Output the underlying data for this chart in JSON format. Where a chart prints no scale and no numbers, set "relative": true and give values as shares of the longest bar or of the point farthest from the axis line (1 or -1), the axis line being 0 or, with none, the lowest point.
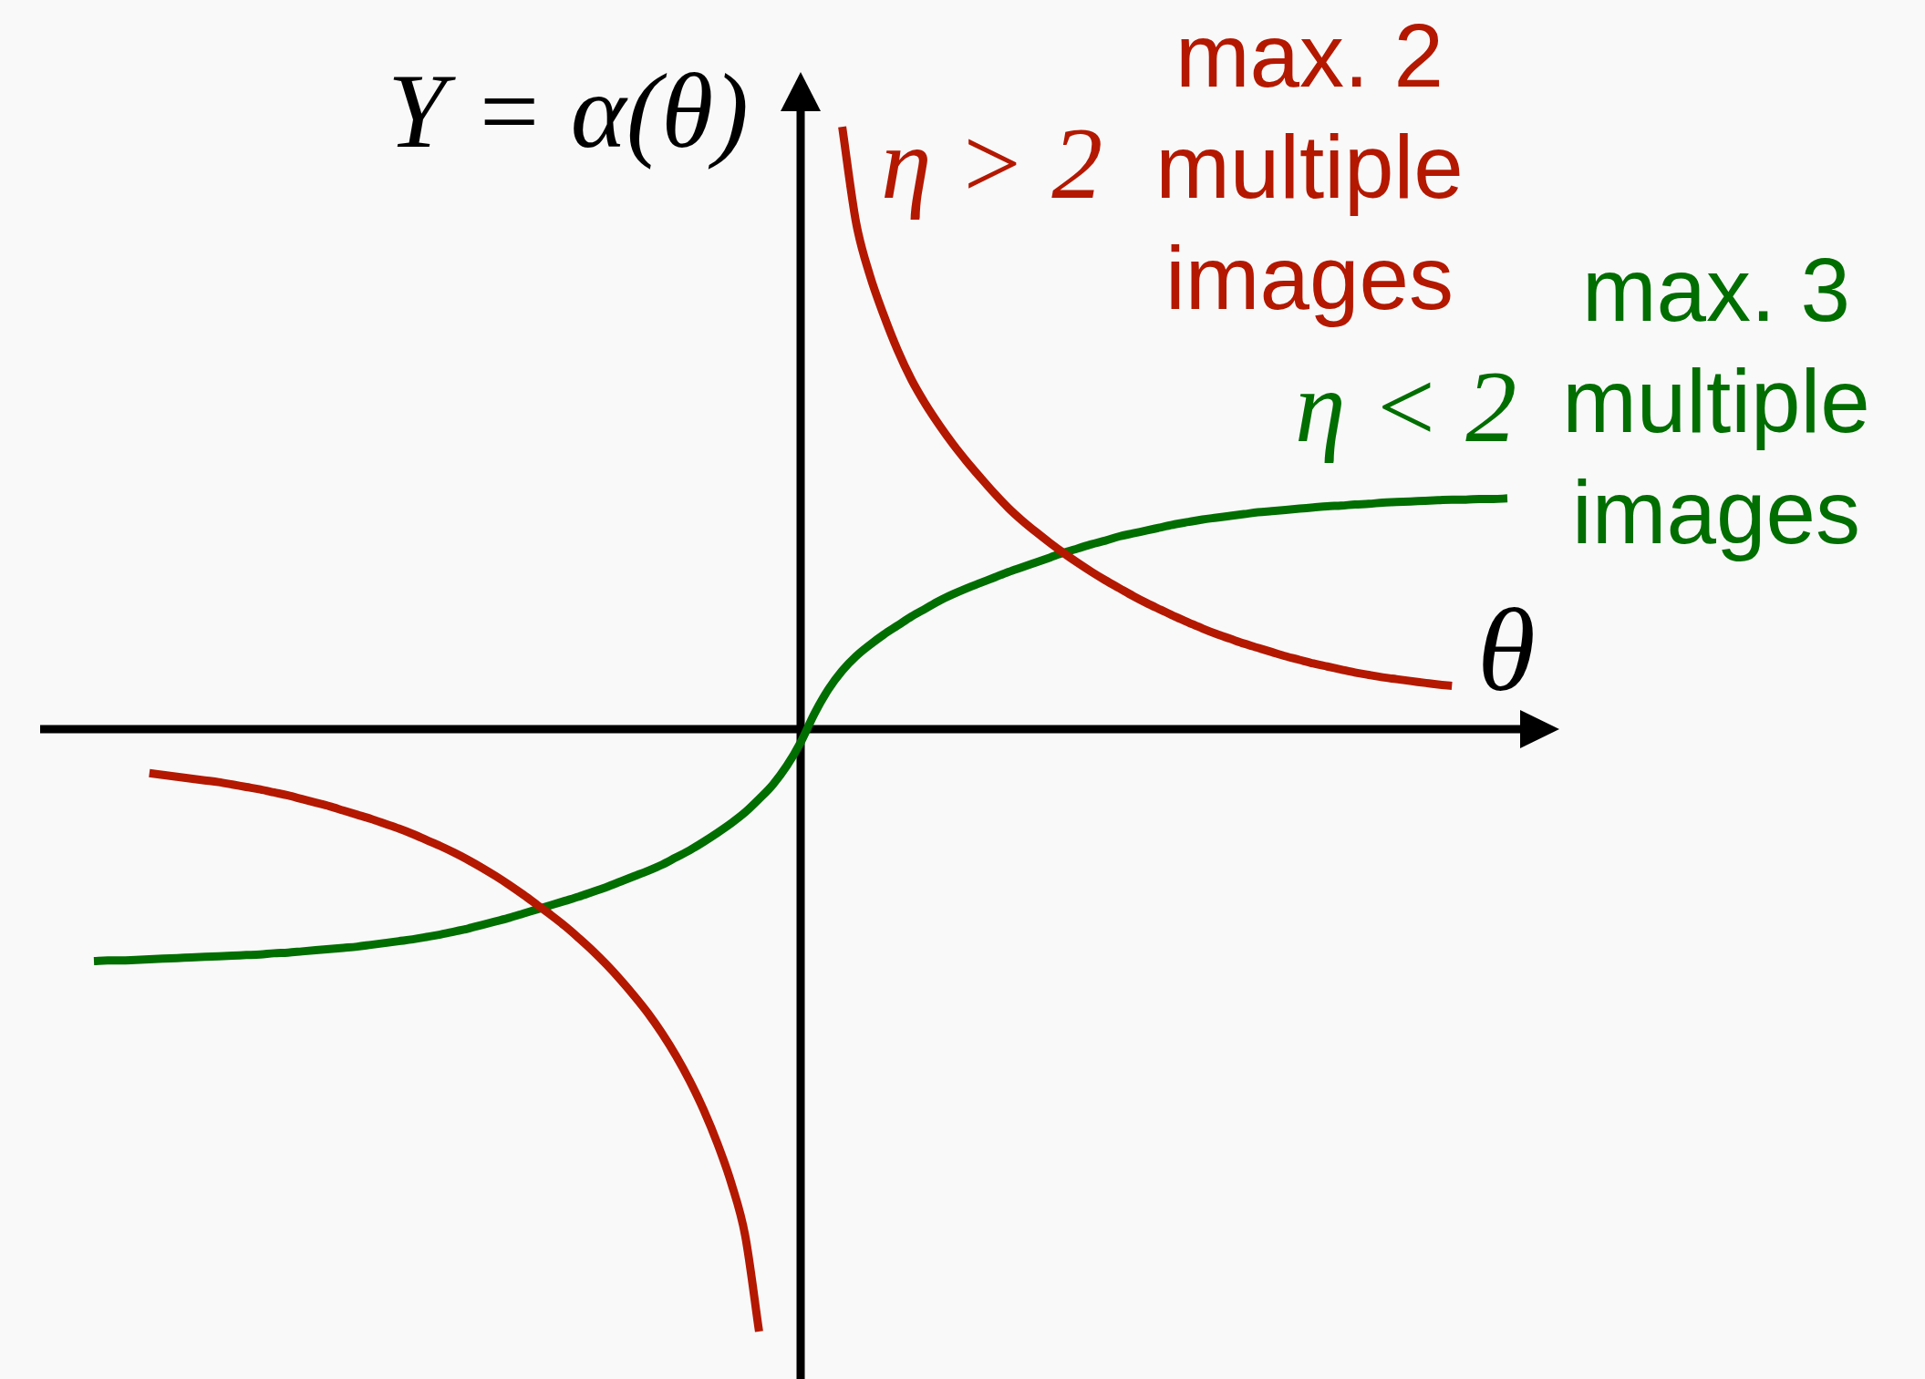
{
  "chart_data": {
    "type": "line",
    "relative": true,
    "xlabel": "θ",
    "ylabel": "Y = α(θ)",
    "annotations": [
      "max. 2 multiple images",
      "max. 3 multiple images"
    ],
    "categories": [
      null,
      null,
      null,
      null,
      null,
      null,
      null,
      null,
      null,
      null,
      null,
      null,
      null,
      null,
      null,
      null,
      null,
      null,
      null,
      null,
      null,
      null,
      null,
      null,
      null,
      null,
      null,
      null,
      null,
      null,
      null,
      null,
      null,
      null,
      null,
      null,
      null,
      null,
      null,
      null,
      null,
      null,
      null,
      null,
      null,
      null,
      null,
      null,
      null,
      null,
      null,
      null,
      null,
      null,
      null,
      null,
      null,
      null,
      null,
      null,
      null,
      null,
      null,
      null,
      null,
      null,
      null,
      null,
      null,
      null,
      null,
      null,
      null,
      null,
      null,
      null,
      null,
      null,
      null,
      null,
      null,
      null,
      null,
      null,
      null,
      null,
      null,
      null,
      null,
      null,
      null,
      null,
      null,
      null,
      null,
      null,
      null,
      null,
      null,
      null,
      null,
      null,
      null
    ],
    "series": [
      {
        "name": "η > 2",
        "color": "#b41800",
        "values": [
          null,
          null,
          null,
          null,
          -0.073,
          -0.076,
          -0.079,
          -0.082,
          -0.085,
          -0.088,
          -0.092,
          -0.096,
          -0.1,
          -0.105,
          -0.11,
          -0.116,
          -0.122,
          -0.128,
          -0.135,
          -0.142,
          -0.149,
          -0.157,
          -0.165,
          -0.174,
          -0.184,
          -0.194,
          -0.205,
          -0.217,
          -0.23,
          -0.244,
          -0.259,
          -0.275,
          -0.292,
          -0.309,
          -0.327,
          -0.347,
          -0.368,
          -0.391,
          -0.416,
          -0.443,
          -0.472,
          -0.505,
          -0.542,
          -0.584,
          -0.632,
          -0.688,
          -0.754,
          -0.841,
          -1.0,
          null,
          null,
          null,
          null,
          null,
          1.0,
          0.841,
          0.753,
          0.687,
          0.629,
          0.58,
          0.54,
          0.505,
          0.473,
          0.444,
          0.417,
          0.391,
          0.367,
          0.346,
          0.327,
          0.309,
          0.292,
          0.276,
          0.261,
          0.247,
          0.234,
          0.221,
          0.209,
          0.198,
          0.187,
          0.177,
          0.167,
          0.158,
          0.15,
          0.142,
          0.135,
          0.128,
          0.121,
          0.115,
          0.109,
          0.104,
          0.099,
          0.094,
          0.09,
          0.086,
          0.083,
          0.08,
          0.077,
          0.074,
          0.072,
          null,
          null,
          null,
          null
        ]
      },
      {
        "name": "η < 2",
        "color": "#006e00",
        "values": [
          -0.385,
          -0.384,
          -0.384,
          -0.383,
          -0.382,
          -0.381,
          -0.38,
          -0.379,
          -0.378,
          -0.377,
          -0.376,
          -0.375,
          -0.374,
          -0.372,
          -0.371,
          -0.369,
          -0.367,
          -0.365,
          -0.363,
          -0.361,
          -0.358,
          -0.355,
          -0.352,
          -0.349,
          -0.345,
          -0.341,
          -0.336,
          -0.331,
          -0.325,
          -0.319,
          -0.313,
          -0.306,
          -0.299,
          -0.292,
          -0.285,
          -0.278,
          -0.27,
          -0.262,
          -0.253,
          -0.244,
          -0.235,
          -0.225,
          -0.213,
          -0.201,
          -0.187,
          -0.172,
          -0.156,
          -0.138,
          -0.116,
          -0.092,
          -0.061,
          -0.022,
          0.026,
          0.066,
          0.097,
          0.121,
          0.14,
          0.157,
          0.172,
          0.187,
          0.2,
          0.213,
          0.224,
          0.234,
          0.243,
          0.252,
          0.261,
          0.269,
          0.277,
          0.285,
          0.293,
          0.3,
          0.307,
          0.313,
          0.32,
          0.325,
          0.33,
          0.335,
          0.34,
          0.344,
          0.348,
          0.351,
          0.354,
          0.357,
          0.36,
          0.362,
          0.364,
          0.366,
          0.368,
          0.37,
          0.371,
          0.373,
          0.374,
          0.376,
          0.377,
          0.378,
          0.379,
          0.38,
          0.381,
          0.381,
          0.382,
          0.382,
          0.383
        ]
      }
    ]
  }
}
